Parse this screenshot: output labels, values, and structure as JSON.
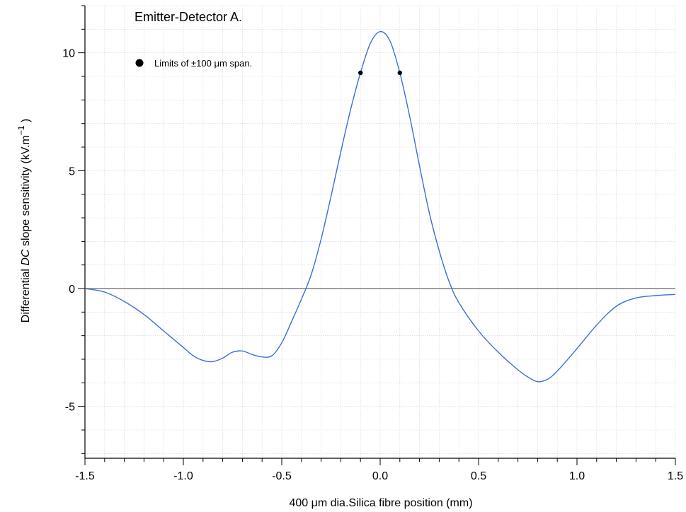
{
  "chart_data": {
    "type": "line",
    "title": "Emitter-Detector A.",
    "xlabel": "400 μm dia.Silica fibre position (mm)",
    "ylabel": "Differential DC slope sensitivity (kV.m⁻¹ )",
    "xlim": [
      -1.5,
      1.5
    ],
    "ylim": [
      -7.2,
      12.0
    ],
    "x_ticks": [
      -1.5,
      -1.0,
      -0.5,
      0.0,
      0.5,
      1.0,
      1.5
    ],
    "x_tick_labels": [
      "-1.5",
      "-1.0",
      "-0.5",
      "0.0",
      "0.5",
      "1.0",
      "1.5"
    ],
    "y_ticks": [
      -5,
      0,
      5,
      10
    ],
    "y_tick_labels": [
      "-5",
      "0",
      "5",
      "10"
    ],
    "grid": true,
    "legend_position": "top-left",
    "colors": {
      "series": "#3a6fd6",
      "zero_line": "#7f7f7f",
      "grid": "#d3d3d3"
    },
    "series": [
      {
        "x": [
          -1.5,
          -1.4,
          -1.3,
          -1.2,
          -1.1,
          -1.0,
          -0.95,
          -0.9,
          -0.85,
          -0.8,
          -0.75,
          -0.7,
          -0.65,
          -0.6,
          -0.55,
          -0.5,
          -0.45,
          -0.4,
          -0.35,
          -0.3,
          -0.25,
          -0.2,
          -0.15,
          -0.1,
          -0.05,
          0.0,
          0.05,
          0.1,
          0.15,
          0.2,
          0.25,
          0.3,
          0.35,
          0.4,
          0.5,
          0.6,
          0.7,
          0.75,
          0.8,
          0.85,
          0.9,
          1.0,
          1.1,
          1.2,
          1.3,
          1.4,
          1.5
        ],
        "y": [
          0.0,
          -0.15,
          -0.55,
          -1.1,
          -1.8,
          -2.5,
          -2.85,
          -3.05,
          -3.1,
          -2.95,
          -2.7,
          -2.65,
          -2.8,
          -2.9,
          -2.85,
          -2.3,
          -1.4,
          -0.45,
          0.6,
          2.1,
          3.9,
          5.8,
          7.6,
          9.15,
          10.4,
          10.9,
          10.5,
          9.15,
          7.3,
          5.2,
          3.2,
          1.6,
          0.3,
          -0.6,
          -1.8,
          -2.7,
          -3.45,
          -3.75,
          -3.95,
          -3.85,
          -3.5,
          -2.55,
          -1.55,
          -0.75,
          -0.4,
          -0.3,
          -0.25
        ]
      }
    ],
    "markers": {
      "label": "Limits of ±100 μm span.",
      "points": [
        {
          "x": -0.1,
          "y": 9.15
        },
        {
          "x": 0.1,
          "y": 9.15
        }
      ]
    },
    "zero_line": 0
  }
}
